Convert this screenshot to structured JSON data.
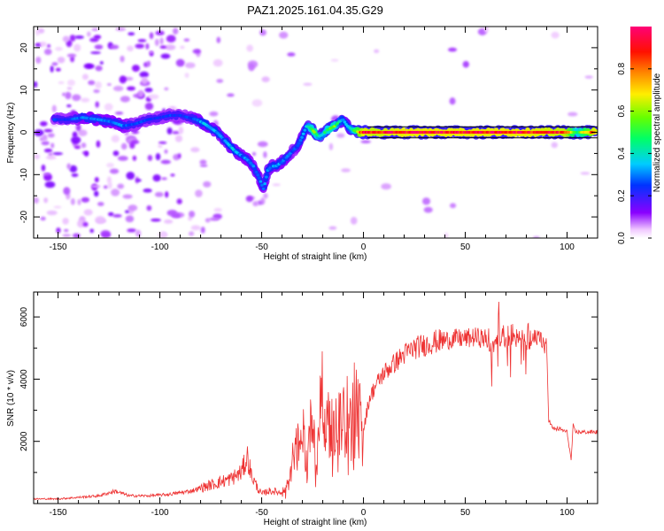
{
  "title": "PAZ1.2025.161.04.35.G29",
  "chart_data": [
    {
      "type": "heatmap",
      "xlabel": "Height of straight line (km)",
      "ylabel": "Frequency (Hz)",
      "xlim": [
        -162,
        115
      ],
      "ylim": [
        -25,
        25
      ],
      "x_ticks": [
        -150,
        -100,
        -50,
        0,
        50,
        100
      ],
      "y_ticks": [
        -20,
        -10,
        0,
        10,
        20
      ],
      "x_tick_labels": [
        "-150",
        "-100",
        "-50",
        "0",
        "50",
        "100"
      ],
      "y_tick_labels": [
        "-20",
        "-10",
        "0",
        "10",
        "20"
      ],
      "colorbar": {
        "label": "Normalized spectral amplitude",
        "range": [
          0,
          1
        ],
        "ticks": [
          0.0,
          0.2,
          0.4,
          0.6,
          0.8
        ],
        "tick_labels": [
          "0.0",
          "0.2",
          "0.4",
          "0.6",
          "0.8"
        ],
        "colormap": "hsv_reversed"
      },
      "ridge": {
        "x": [
          -152,
          -145,
          -138,
          -130,
          -124,
          -118,
          -112,
          -106,
          -100,
          -95,
          -90,
          -86,
          -82,
          -78,
          -75,
          -72,
          -69,
          -66,
          -63,
          -60,
          -57,
          -54,
          -51,
          -49,
          -47,
          -45,
          -43,
          -40,
          -37,
          -34,
          -32,
          -30,
          -28,
          -26,
          -24,
          -22,
          -20,
          -18,
          -16,
          -14,
          -12,
          -10,
          -8,
          -5,
          -2,
          0,
          5,
          20,
          40,
          60,
          80,
          100,
          105,
          114
        ],
        "y": [
          3,
          3,
          3.5,
          3,
          2.5,
          1.5,
          2,
          3,
          3.5,
          4,
          4,
          3.5,
          3,
          2,
          1,
          0,
          -1.5,
          -3,
          -4.5,
          -5.5,
          -6.5,
          -8,
          -11,
          -13.5,
          -9,
          -8,
          -8,
          -7,
          -5.5,
          -4,
          -3,
          -1,
          1.5,
          1,
          0,
          -1,
          -0.5,
          0.5,
          1,
          1.5,
          2.5,
          3,
          1.5,
          0.5,
          0,
          0,
          0,
          0,
          0,
          0,
          0,
          0,
          0,
          0
        ],
        "amplitude": [
          0.25,
          0.25,
          0.3,
          0.3,
          0.3,
          0.3,
          0.25,
          0.25,
          0.25,
          0.25,
          0.25,
          0.25,
          0.3,
          0.35,
          0.3,
          0.35,
          0.3,
          0.35,
          0.35,
          0.3,
          0.3,
          0.3,
          0.3,
          0.3,
          0.35,
          0.3,
          0.35,
          0.3,
          0.3,
          0.25,
          0.3,
          0.35,
          0.35,
          0.5,
          0.6,
          0.45,
          0.4,
          0.5,
          0.55,
          0.55,
          0.4,
          0.35,
          0.35,
          0.45,
          0.8,
          0.95,
          0.9,
          0.95,
          0.95,
          0.95,
          0.95,
          0.9,
          0.5,
          0.95
        ]
      }
    },
    {
      "type": "line",
      "xlabel": "Height of straight line (km)",
      "ylabel": "SNR (10 * v/v)",
      "xlim": [
        -162,
        115
      ],
      "ylim": [
        0,
        6800
      ],
      "x_ticks": [
        -150,
        -100,
        -50,
        0,
        50,
        100
      ],
      "y_ticks": [
        2000,
        4000,
        6000
      ],
      "x_tick_labels": [
        "-150",
        "-100",
        "-50",
        "0",
        "50",
        "100"
      ],
      "y_tick_labels": [
        "2000",
        "4000",
        "6000"
      ],
      "color": "#ee3333",
      "series": [
        {
          "x": [
            -162,
            -150,
            -140,
            -130,
            -122,
            -115,
            -105,
            -95,
            -85,
            -80,
            -75,
            -70,
            -65,
            -60,
            -57,
            -55,
            -52,
            -50,
            -47,
            -44,
            -41,
            -38,
            -35,
            -32,
            -30,
            -28,
            -25,
            -23,
            -21,
            -19,
            -17,
            -15,
            -12,
            -10,
            -8,
            -6,
            -4,
            -2,
            0,
            3,
            6,
            10,
            15,
            20,
            25,
            30,
            35,
            40,
            45,
            50,
            55,
            60,
            63,
            65,
            70,
            75,
            80,
            85,
            88,
            90,
            91,
            93,
            96,
            100,
            102,
            103,
            104,
            106,
            110,
            115
          ],
          "y": [
            150,
            150,
            200,
            250,
            400,
            250,
            250,
            300,
            400,
            500,
            600,
            700,
            800,
            1000,
            1500,
            900,
            500,
            300,
            400,
            400,
            350,
            500,
            1400,
            2000,
            2500,
            1500,
            3000,
            1200,
            4200,
            2500,
            3200,
            2200,
            3000,
            2800,
            3000,
            2600,
            3600,
            3000,
            2400,
            3400,
            3800,
            4200,
            4500,
            4800,
            5000,
            5100,
            5200,
            5250,
            5300,
            5300,
            5350,
            5300,
            4800,
            5400,
            5300,
            5300,
            5200,
            5300,
            5200,
            5000,
            2700,
            2400,
            2400,
            2300,
            1400,
            2500,
            2300,
            2300,
            2300,
            2300
          ]
        }
      ]
    }
  ]
}
